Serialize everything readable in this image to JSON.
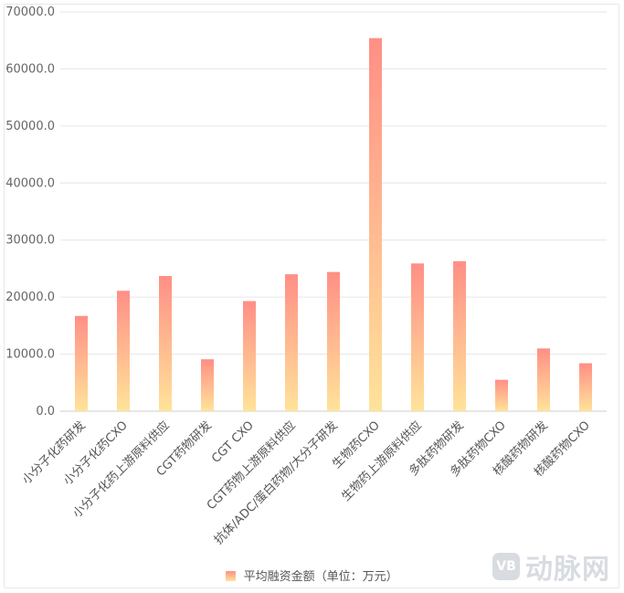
{
  "chart_data": {
    "type": "bar",
    "categories": [
      "小分子化药研发",
      "小分子化药CXO",
      "小分子化药上游原料供应",
      "CGT药物研发",
      "CGT CXO",
      "CGT药物上游原料供应",
      "抗体/ADC/蛋白药物/大分子研发",
      "生物药CXO",
      "生物药上游原料供应",
      "多肽药物研发",
      "多肽药物CXO",
      "核酸药物研发",
      "核酸药物CXO"
    ],
    "series": [
      {
        "name": "平均融资金额（单位：万元）",
        "values": [
          16700,
          21100,
          23700,
          9100,
          19300,
          24000,
          24400,
          65400,
          25900,
          26300,
          5500,
          11000,
          8400
        ]
      }
    ],
    "y_ticks": [
      "0.0",
      "10000.0",
      "20000.0",
      "30000.0",
      "40000.0",
      "50000.0",
      "60000.0",
      "70000.0"
    ],
    "ylim": [
      0,
      70000
    ],
    "grid": true,
    "legend_position": "bottom-center",
    "bar_gradient": {
      "top": "#ff8f86",
      "bottom": "#ffe39a"
    },
    "grid_color": "#e6e6e6",
    "axis_color": "#cccccc"
  },
  "watermark": {
    "text": "动脉网",
    "logo": "VB"
  }
}
